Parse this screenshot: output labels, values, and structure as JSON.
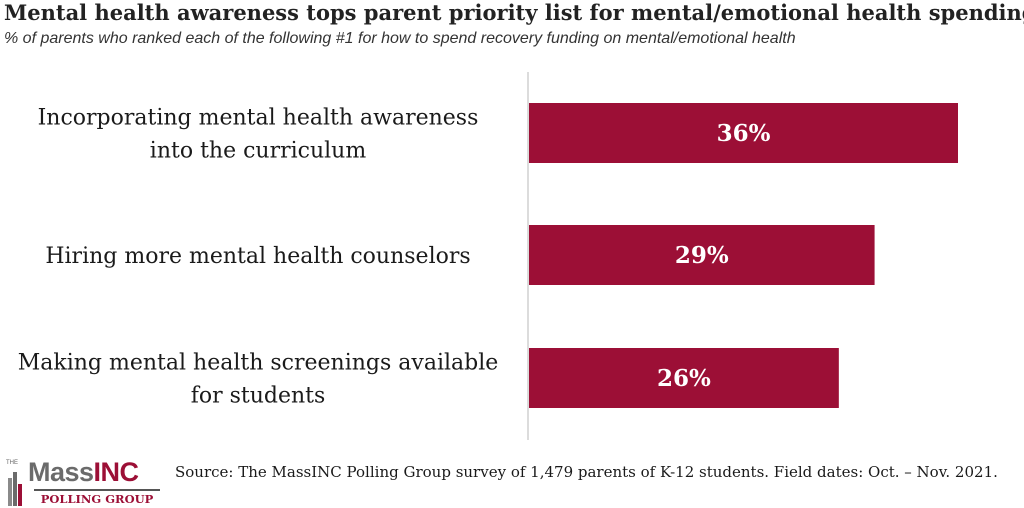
{
  "header": {
    "title": "Mental health awareness tops parent priority list for mental/emotional health spending",
    "subtitle": "% of parents who ranked each of the following #1 for how to spend recovery funding on mental/emotional health"
  },
  "chart_data": {
    "type": "bar",
    "orientation": "horizontal",
    "categories": [
      [
        "Incorporating mental health awareness",
        "into the curriculum"
      ],
      [
        "Hiring more mental health counselors"
      ],
      [
        "Making mental health screenings available",
        "for students"
      ]
    ],
    "values": [
      36,
      29,
      26
    ],
    "value_labels": [
      "36%",
      "29%",
      "26%"
    ],
    "xlim": [
      0,
      40
    ],
    "bar_color": "#9c0f36",
    "grid": false,
    "legend": "none"
  },
  "footer": {
    "logo_the": "THE",
    "logo_mass": "Mass",
    "logo_inc": "INC",
    "logo_polling": "POLLING GROUP",
    "source": "Source: The MassINC Polling Group survey of 1,479 parents of K-12 students. Field dates: Oct. – Nov. 2021."
  },
  "colors": {
    "brand": "#9c0f36",
    "axis": "#d0d0d0"
  }
}
